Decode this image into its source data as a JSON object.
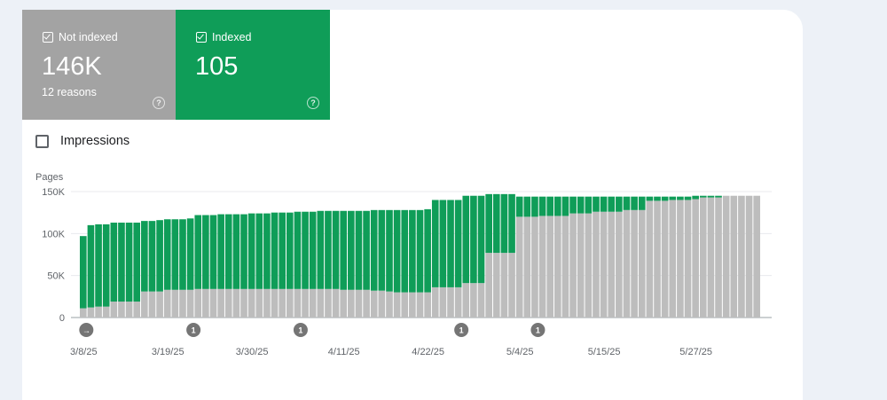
{
  "tiles": {
    "not_indexed": {
      "label": "Not indexed",
      "value": "146K",
      "sub": "12 reasons",
      "color": "#a3a3a3"
    },
    "indexed": {
      "label": "Indexed",
      "value": "105",
      "color": "#0f9d58"
    },
    "help_glyph": "?"
  },
  "impressions": {
    "label": "Impressions",
    "checked": false
  },
  "chart_data": {
    "type": "bar",
    "stacked": true,
    "ylabel": "Pages",
    "ylim": [
      0,
      150000
    ],
    "yticks": [
      {
        "value": 0,
        "label": "0"
      },
      {
        "value": 50000,
        "label": "50K"
      },
      {
        "value": 100000,
        "label": "100K"
      },
      {
        "value": 150000,
        "label": "150K"
      }
    ],
    "xtick_labels": [
      {
        "index": 0,
        "label": "3/8/25"
      },
      {
        "index": 11,
        "label": "3/19/25"
      },
      {
        "index": 22,
        "label": "3/30/25"
      },
      {
        "index": 34,
        "label": "4/11/25"
      },
      {
        "index": 45,
        "label": "4/22/25"
      },
      {
        "index": 57,
        "label": "5/4/25"
      },
      {
        "index": 68,
        "label": "5/15/25"
      },
      {
        "index": 80,
        "label": "5/27/25"
      }
    ],
    "annotations": [
      {
        "index": 0,
        "label": "→"
      },
      {
        "index": 14,
        "label": "1"
      },
      {
        "index": 28,
        "label": "1"
      },
      {
        "index": 49,
        "label": "1"
      },
      {
        "index": 59,
        "label": "1"
      }
    ],
    "series": [
      {
        "name": "Not indexed",
        "color": "#bdbdbd",
        "values": [
          11000,
          12000,
          13000,
          13000,
          19000,
          19000,
          19000,
          19000,
          31000,
          31000,
          31000,
          33000,
          33000,
          33000,
          33000,
          34000,
          34000,
          34000,
          34000,
          34000,
          34000,
          34000,
          34000,
          34000,
          34000,
          34000,
          34000,
          34000,
          34000,
          34000,
          34000,
          34000,
          34000,
          34000,
          33000,
          33000,
          33000,
          33000,
          32000,
          32000,
          31000,
          30000,
          30000,
          30000,
          30000,
          30000,
          36000,
          36000,
          36000,
          36000,
          41000,
          41000,
          41000,
          77000,
          77000,
          77000,
          77000,
          120000,
          120000,
          120000,
          121000,
          121000,
          121000,
          121000,
          124000,
          124000,
          124000,
          126000,
          126000,
          126000,
          126000,
          128000,
          128000,
          128000,
          139000,
          139000,
          139000,
          140000,
          140000,
          140000,
          141000,
          143000,
          143000,
          143000,
          145000,
          145000,
          145000,
          145000,
          145000
        ]
      },
      {
        "name": "Indexed",
        "color": "#0f9d58",
        "values": [
          86000,
          98000,
          98000,
          98000,
          94000,
          94000,
          94000,
          94000,
          84000,
          84000,
          85000,
          84000,
          84000,
          84000,
          85000,
          88000,
          88000,
          88000,
          89000,
          89000,
          89000,
          89000,
          90000,
          90000,
          90000,
          91000,
          91000,
          91000,
          92000,
          92000,
          92000,
          93000,
          93000,
          93000,
          94000,
          94000,
          94000,
          94000,
          96000,
          96000,
          97000,
          98000,
          98000,
          98000,
          98000,
          99000,
          104000,
          104000,
          104000,
          104000,
          104000,
          104000,
          104000,
          70000,
          70000,
          70000,
          70000,
          24000,
          24000,
          24000,
          23000,
          23000,
          23000,
          23000,
          20000,
          20000,
          20000,
          18000,
          18000,
          18000,
          18000,
          16000,
          16000,
          16000,
          5000,
          5000,
          5000,
          4000,
          4000,
          4000,
          4000,
          2000,
          2000,
          2000,
          0,
          0,
          0,
          0,
          0
        ]
      }
    ]
  }
}
